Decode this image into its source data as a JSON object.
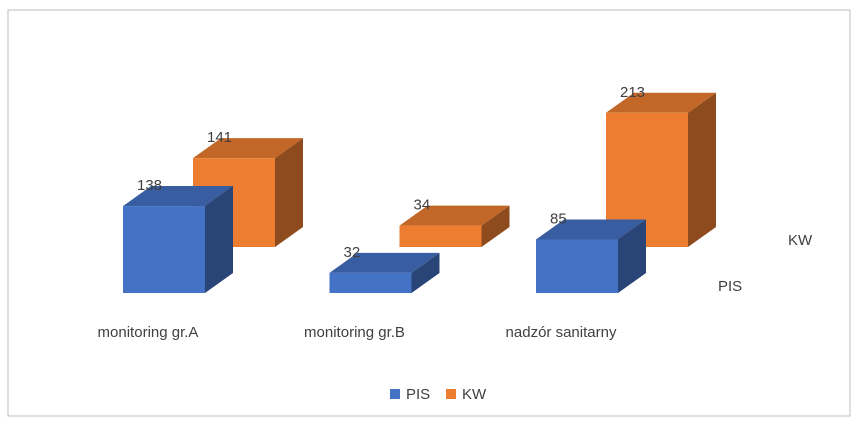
{
  "chart_data": {
    "type": "bar3d",
    "categories": [
      "monitoring gr.A",
      "monitoring gr.B",
      "nadzór sanitarny"
    ],
    "series": [
      {
        "name": "PIS",
        "color": "#4472c4",
        "values": [
          138,
          32,
          85
        ]
      },
      {
        "name": "KW",
        "color": "#ed7d31",
        "values": [
          141,
          34,
          213
        ]
      }
    ],
    "legend": "bottom"
  }
}
